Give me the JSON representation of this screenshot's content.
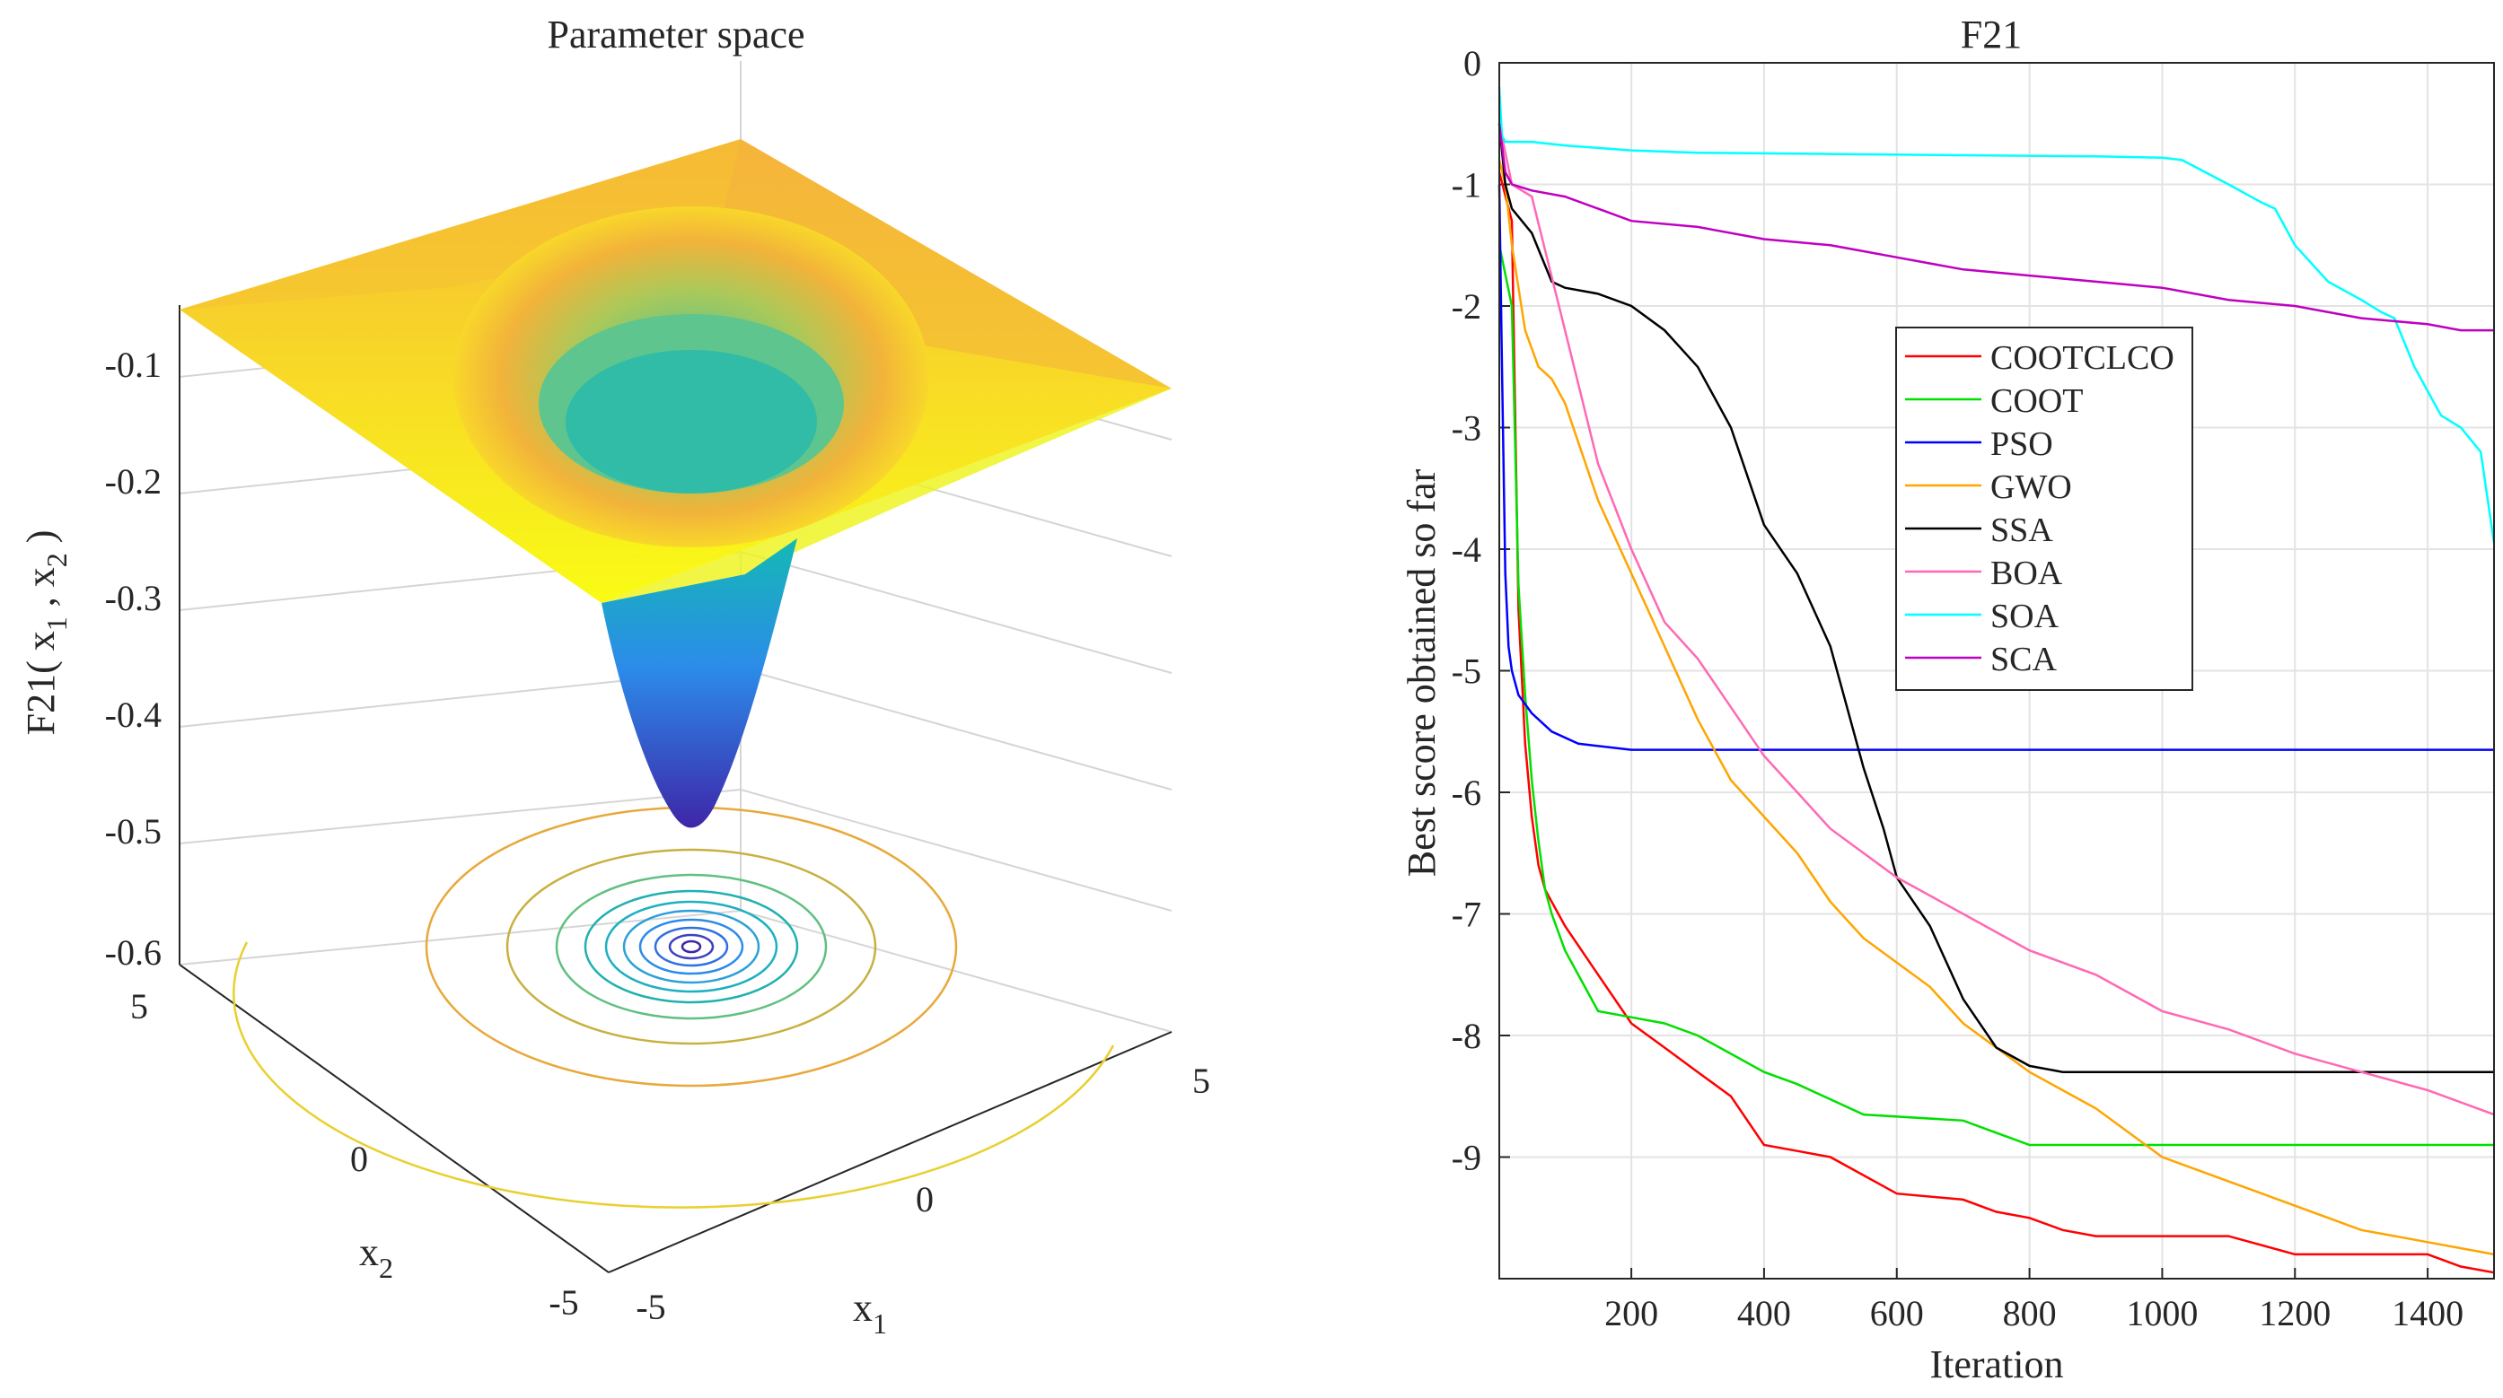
{
  "chart_data": [
    {
      "type": "surface",
      "title": "Parameter space",
      "xlabel": "x",
      "xlabel_sub": "1",
      "ylabel": "x",
      "ylabel_sub": "2",
      "zlabel_parts": [
        "F21( x",
        "1",
        " , x",
        "2",
        " )"
      ],
      "x_ticks": [
        "-5",
        "0",
        "5"
      ],
      "y_ticks": [
        "-5",
        "0",
        "5"
      ],
      "z_ticks": [
        "-0.1",
        "-0.2",
        "-0.3",
        "-0.4",
        "-0.5",
        "-0.6"
      ],
      "zlim": [
        -0.6,
        -0.05
      ],
      "surface_min": -0.53,
      "colormap": [
        "#3e26a8",
        "#2c8bea",
        "#14b9b4",
        "#7fc97f",
        "#f0b836",
        "#f9fb15"
      ]
    },
    {
      "type": "line",
      "title": "F21",
      "xlabel": "Iteration",
      "ylabel": "Best score obtained so far",
      "xlim": [
        1,
        1500
      ],
      "ylim": [
        -10,
        0
      ],
      "x_ticks": [
        200,
        400,
        600,
        800,
        1000,
        1200,
        1400
      ],
      "y_ticks": [
        0,
        -1,
        -2,
        -3,
        -4,
        -5,
        -6,
        -7,
        -8,
        -9
      ],
      "grid": true,
      "legend_position": "center",
      "series": [
        {
          "name": "COOTCLCO",
          "color": "#ff0000",
          "x": [
            1,
            20,
            30,
            40,
            50,
            60,
            70,
            80,
            100,
            150,
            200,
            250,
            300,
            350,
            400,
            450,
            500,
            600,
            700,
            750,
            800,
            850,
            900,
            1000,
            1100,
            1200,
            1300,
            1400,
            1450,
            1500
          ],
          "y": [
            -0.9,
            -1.3,
            -4.5,
            -5.6,
            -6.2,
            -6.6,
            -6.8,
            -6.9,
            -7.1,
            -7.5,
            -7.9,
            -8.1,
            -8.3,
            -8.5,
            -8.9,
            -8.95,
            -9.0,
            -9.3,
            -9.35,
            -9.45,
            -9.5,
            -9.6,
            -9.65,
            -9.65,
            -9.65,
            -9.8,
            -9.8,
            -9.8,
            -9.9,
            -9.95
          ]
        },
        {
          "name": "COOT",
          "color": "#00e000",
          "x": [
            1,
            20,
            30,
            40,
            50,
            60,
            70,
            80,
            100,
            150,
            200,
            250,
            300,
            400,
            450,
            550,
            700,
            750,
            800,
            900,
            1000,
            1100,
            1200,
            1300,
            1500
          ],
          "y": [
            -1.5,
            -2.0,
            -4.3,
            -5.2,
            -5.9,
            -6.4,
            -6.8,
            -7.0,
            -7.3,
            -7.8,
            -7.85,
            -7.9,
            -8.0,
            -8.3,
            -8.4,
            -8.65,
            -8.7,
            -8.8,
            -8.9,
            -8.9,
            -8.9,
            -8.9,
            -8.9,
            -8.9,
            -8.9
          ]
        },
        {
          "name": "PSO",
          "color": "#0000ff",
          "x": [
            1,
            5,
            10,
            15,
            20,
            30,
            50,
            80,
            120,
            200,
            300,
            500,
            800,
            1000,
            1200,
            1500
          ],
          "y": [
            -1.0,
            -2.5,
            -4.2,
            -4.8,
            -5.0,
            -5.2,
            -5.35,
            -5.5,
            -5.6,
            -5.65,
            -5.65,
            -5.65,
            -5.65,
            -5.65,
            -5.65,
            -5.65
          ]
        },
        {
          "name": "GWO",
          "color": "#ffa500",
          "x": [
            1,
            10,
            20,
            40,
            60,
            80,
            100,
            150,
            200,
            250,
            300,
            350,
            400,
            450,
            500,
            550,
            600,
            650,
            700,
            750,
            800,
            850,
            900,
            1000,
            1100,
            1200,
            1300,
            1400,
            1500
          ],
          "y": [
            -0.8,
            -1.0,
            -1.5,
            -2.2,
            -2.5,
            -2.6,
            -2.8,
            -3.6,
            -4.2,
            -4.8,
            -5.4,
            -5.9,
            -6.2,
            -6.5,
            -6.9,
            -7.2,
            -7.4,
            -7.6,
            -7.9,
            -8.1,
            -8.3,
            -8.45,
            -8.6,
            -9.0,
            -9.2,
            -9.4,
            -9.6,
            -9.7,
            -9.8
          ]
        },
        {
          "name": "SSA",
          "color": "#000000",
          "x": [
            1,
            10,
            20,
            50,
            80,
            100,
            150,
            200,
            250,
            300,
            350,
            400,
            450,
            500,
            520,
            550,
            580,
            600,
            650,
            700,
            750,
            800,
            850,
            900,
            1000,
            1200,
            1500
          ],
          "y": [
            -0.5,
            -1.0,
            -1.2,
            -1.4,
            -1.8,
            -1.85,
            -1.9,
            -2.0,
            -2.2,
            -2.5,
            -3.0,
            -3.8,
            -4.2,
            -4.8,
            -5.2,
            -5.8,
            -6.3,
            -6.7,
            -7.1,
            -7.7,
            -8.1,
            -8.25,
            -8.3,
            -8.3,
            -8.3,
            -8.3,
            -8.3
          ]
        },
        {
          "name": "BOA",
          "color": "#ff69b4",
          "x": [
            1,
            20,
            50,
            100,
            150,
            200,
            250,
            300,
            350,
            400,
            450,
            500,
            550,
            600,
            700,
            800,
            900,
            1000,
            1100,
            1200,
            1300,
            1400,
            1500
          ],
          "y": [
            -0.5,
            -1.0,
            -1.1,
            -2.2,
            -3.3,
            -4.0,
            -4.6,
            -4.9,
            -5.3,
            -5.7,
            -6.0,
            -6.3,
            -6.5,
            -6.7,
            -7.0,
            -7.3,
            -7.5,
            -7.8,
            -7.95,
            -8.15,
            -8.3,
            -8.45,
            -8.65
          ]
        },
        {
          "name": "SOA",
          "color": "#00ffff",
          "x": [
            1,
            5,
            10,
            20,
            50,
            100,
            200,
            300,
            500,
            700,
            900,
            1000,
            1030,
            1100,
            1150,
            1170,
            1200,
            1250,
            1300,
            1330,
            1350,
            1380,
            1400,
            1420,
            1450,
            1480,
            1500
          ],
          "y": [
            -0.2,
            -0.6,
            -0.65,
            -0.65,
            -0.65,
            -0.68,
            -0.72,
            -0.74,
            -0.75,
            -0.76,
            -0.77,
            -0.78,
            -0.8,
            -1.0,
            -1.15,
            -1.2,
            -1.5,
            -1.8,
            -1.95,
            -2.05,
            -2.1,
            -2.5,
            -2.7,
            -2.9,
            -3.0,
            -3.2,
            -3.95
          ]
        },
        {
          "name": "SCA",
          "color": "#c000c0",
          "x": [
            1,
            10,
            20,
            50,
            100,
            150,
            200,
            300,
            400,
            500,
            550,
            600,
            700,
            800,
            900,
            1000,
            1100,
            1200,
            1300,
            1400,
            1450,
            1500
          ],
          "y": [
            -0.5,
            -0.9,
            -1.0,
            -1.05,
            -1.1,
            -1.2,
            -1.3,
            -1.35,
            -1.45,
            -1.5,
            -1.55,
            -1.6,
            -1.7,
            -1.75,
            -1.8,
            -1.85,
            -1.95,
            -2.0,
            -2.1,
            -2.15,
            -2.2,
            -2.2
          ]
        }
      ]
    }
  ]
}
